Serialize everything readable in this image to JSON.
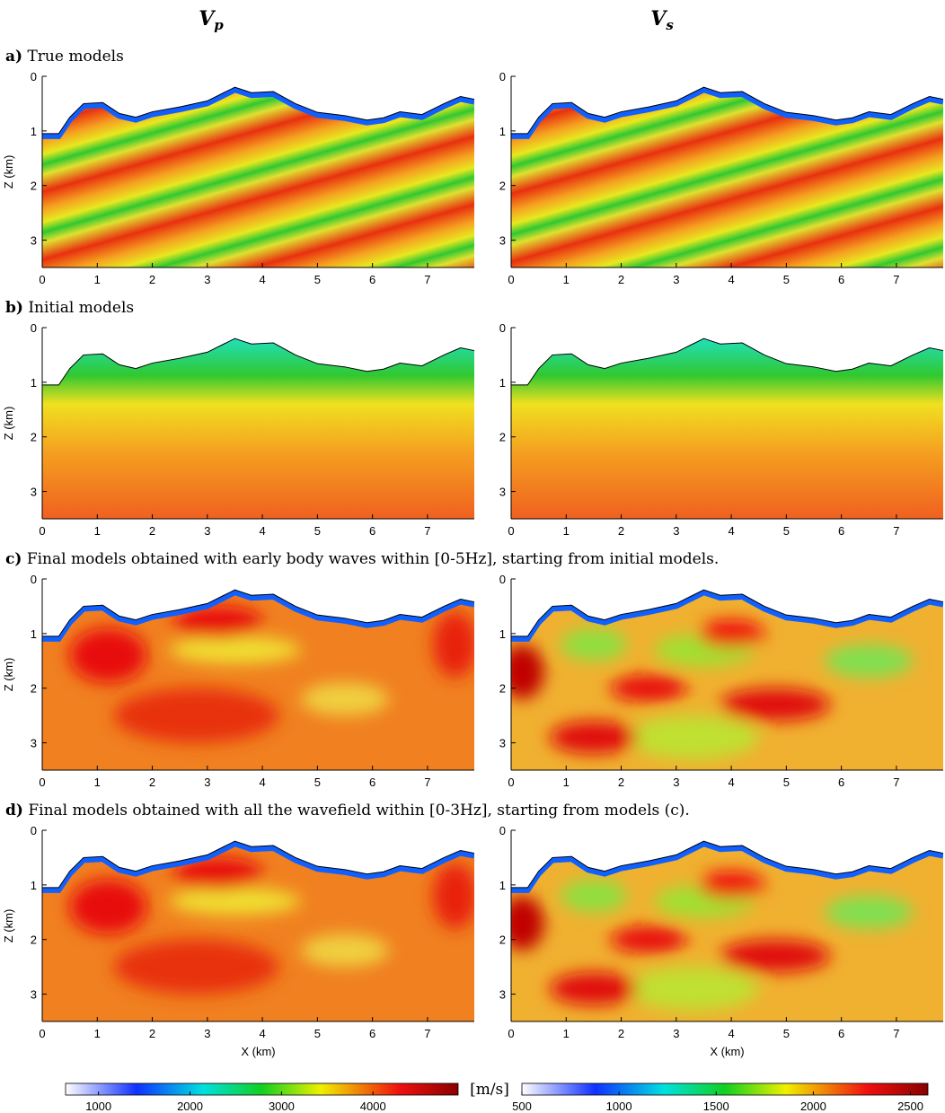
{
  "columns": [
    {
      "symbol": "V",
      "subscript": "p"
    },
    {
      "symbol": "V",
      "subscript": "s"
    }
  ],
  "panels": [
    {
      "label": "a)",
      "caption": "True models"
    },
    {
      "label": "b)",
      "caption": "Initial models"
    },
    {
      "label": "c)",
      "caption": "Final models obtained with early body waves within [0-5Hz], starting from initial models."
    },
    {
      "label": "d)",
      "caption": "Final models obtained with all the wavefield within [0-3Hz], starting from models (c)."
    }
  ],
  "axes": {
    "xlim": [
      0,
      7.85
    ],
    "xticks": [
      0,
      1,
      2,
      3,
      4,
      5,
      6,
      7
    ],
    "ylim": [
      0,
      3.5
    ],
    "yticks": [
      0,
      1,
      2,
      3
    ],
    "xlabel": "X (km)",
    "ylabel": "Z (km)"
  },
  "colorbars": [
    {
      "lim": [
        640,
        4930
      ],
      "ticks": [
        1000,
        2000,
        3000,
        4000
      ]
    },
    {
      "lim": [
        500,
        2590
      ],
      "ticks": [
        500,
        1000,
        1500,
        2000,
        2500
      ]
    }
  ],
  "unit": "[m/s]"
}
